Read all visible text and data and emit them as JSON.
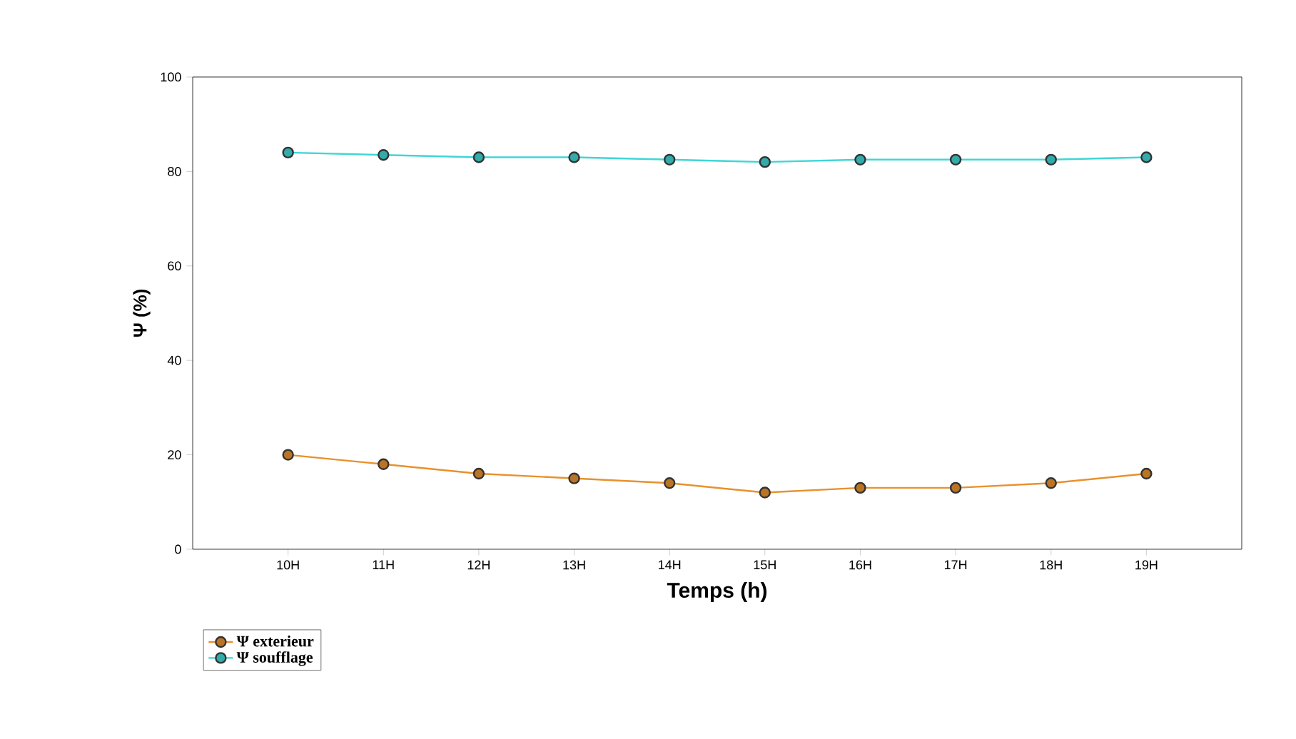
{
  "chart_data": {
    "type": "line",
    "xlabel": "Temps (h)",
    "ylabel": "Ψ (%)",
    "categories": [
      "10H",
      "11H",
      "12H",
      "13H",
      "14H",
      "15H",
      "16H",
      "17H",
      "18H",
      "19H"
    ],
    "series": [
      {
        "name": "Ψ exterieur",
        "color": "#e8912c",
        "values": [
          20,
          18,
          16,
          15,
          14,
          12,
          13,
          13,
          14,
          16
        ]
      },
      {
        "name": "Ψ soufflage",
        "color": "#3fd6d6",
        "values": [
          84,
          83.5,
          83,
          83,
          82.5,
          82,
          82.5,
          82.5,
          82.5,
          83
        ]
      }
    ],
    "ylim": [
      0,
      100
    ],
    "yticks": [
      0,
      20,
      40,
      60,
      80,
      100
    ],
    "grid": false,
    "legend": "bottom left",
    "marker": "circle",
    "line_style": "solid"
  }
}
